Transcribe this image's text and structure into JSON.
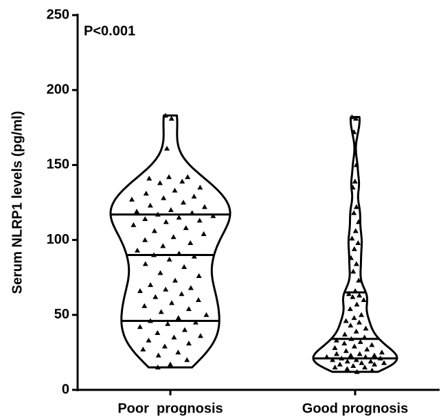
{
  "chart_data": {
    "type": "violin",
    "y_label": "Serum NLRP1 levels (pg/ml)",
    "annotation": "P<0.001",
    "categories": [
      "Poor  prognosis",
      "Good prognosis"
    ],
    "ylim": [
      0,
      250
    ],
    "yticks": [
      0,
      50,
      100,
      150,
      200,
      250
    ],
    "series": [
      {
        "values": [
          183,
          181,
          161,
          142,
          142,
          141,
          139,
          138,
          135,
          133,
          131,
          129,
          128,
          127,
          125,
          123,
          122,
          120,
          119,
          118,
          117,
          116,
          115,
          114,
          113,
          112,
          110,
          108,
          106,
          104,
          102,
          100,
          98,
          96,
          93,
          91,
          90,
          89,
          87,
          84,
          82,
          78,
          76,
          73,
          70,
          68,
          67,
          66,
          64,
          62,
          60,
          58,
          56,
          54,
          52,
          50,
          48,
          46,
          45,
          44,
          42,
          40,
          38,
          36,
          35,
          33,
          31,
          29,
          27,
          25,
          23,
          20,
          17,
          15
        ],
        "quartiles": [
          46,
          90,
          117
        ]
      },
      {
        "values": [
          182,
          181,
          172,
          150,
          139,
          135,
          122,
          118,
          112,
          106,
          101,
          98,
          94,
          88,
          84,
          79,
          73,
          66,
          64,
          63,
          62,
          60,
          57,
          54,
          50,
          48,
          46,
          45,
          43,
          41,
          39,
          37,
          35,
          34,
          33,
          32,
          31,
          30,
          29,
          28,
          27,
          26,
          25,
          24,
          24,
          23,
          23,
          22,
          22,
          21,
          21,
          20,
          20,
          19,
          19,
          18,
          18,
          17,
          17,
          16,
          15,
          15,
          14,
          13,
          12
        ],
        "quartiles": [
          21,
          34,
          65
        ]
      }
    ]
  }
}
